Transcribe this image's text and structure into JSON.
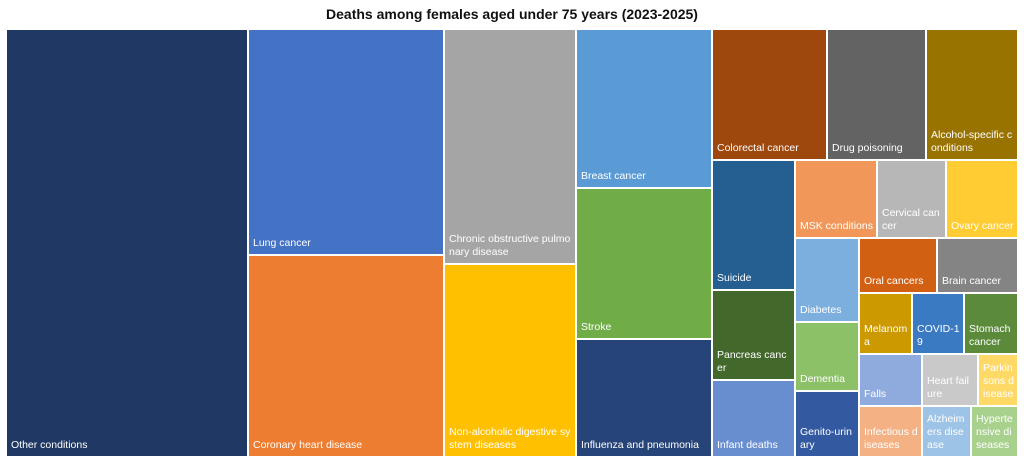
{
  "chart_data": {
    "type": "treemap",
    "title": "Deaths among females aged under 75 years (2023-2025)",
    "items": [
      {
        "label": "Other conditions",
        "color": "#203864",
        "value": 102
      },
      {
        "label": "Lung cancer",
        "color": "#4472C4",
        "value": 44
      },
      {
        "label": "Coronary heart disease",
        "color": "#ED7D31",
        "value": 40
      },
      {
        "label": "Chronic obstructive pulmonary disease",
        "color": "#A5A5A5",
        "value": 30
      },
      {
        "label": "Non-alcoholic digestive system diseases",
        "color": "#FFC000",
        "value": 26
      },
      {
        "label": "Breast cancer",
        "color": "#5B9BD5",
        "value": 21
      },
      {
        "label": "Stroke",
        "color": "#70AD47",
        "value": 20
      },
      {
        "label": "Influenza and pneumonia",
        "color": "#264478",
        "value": 16
      },
      {
        "label": "Colorectal cancer",
        "color": "#9E480E",
        "value": 11
      },
      {
        "label": "Drug poisoning",
        "color": "#636363",
        "value": 10
      },
      {
        "label": "Alcohol-specific conditions",
        "color": "#997300",
        "value": 9
      },
      {
        "label": "Suicide",
        "color": "#255E91",
        "value": 9
      },
      {
        "label": "Pancreas cancer",
        "color": "#43682B",
        "value": 7
      },
      {
        "label": "Infant deaths",
        "color": "#698ED0",
        "value": 6
      },
      {
        "label": "MSK conditions",
        "color": "#F1975A",
        "value": 4
      },
      {
        "label": "Cervical cancer",
        "color": "#B7B7B7",
        "value": 4
      },
      {
        "label": "Ovary cancer",
        "color": "#FFCD33",
        "value": 4
      },
      {
        "label": "Diabetes",
        "color": "#7CAFDD",
        "value": 4
      },
      {
        "label": "Dementia",
        "color": "#8CC168",
        "value": 3
      },
      {
        "label": "Genito-urinary",
        "color": "#335AA1",
        "value": 3
      },
      {
        "label": "Oral cancers",
        "color": "#D26012",
        "value": 2.8
      },
      {
        "label": "Brain cancer",
        "color": "#848484",
        "value": 2.8
      },
      {
        "label": "Melanoma",
        "color": "#CC9A00",
        "value": 2
      },
      {
        "label": "COVID-19",
        "color": "#3A7AC2",
        "value": 2
      },
      {
        "label": "Stomach cancer",
        "color": "#5A8A3A",
        "value": 2
      },
      {
        "label": "Falls",
        "color": "#8FAADC",
        "value": 1.8
      },
      {
        "label": "Heart failure",
        "color": "#C9C9C9",
        "value": 1.8
      },
      {
        "label": "Parkinsons disease",
        "color": "#FFD966",
        "value": 1.4
      },
      {
        "label": "Infectious diseases",
        "color": "#F4B183",
        "value": 1.5
      },
      {
        "label": "Alzheimers disease",
        "color": "#9DC3E6",
        "value": 1.5
      },
      {
        "label": "Hypertensive diseases",
        "color": "#A9D18E",
        "value": 1.4
      }
    ]
  }
}
